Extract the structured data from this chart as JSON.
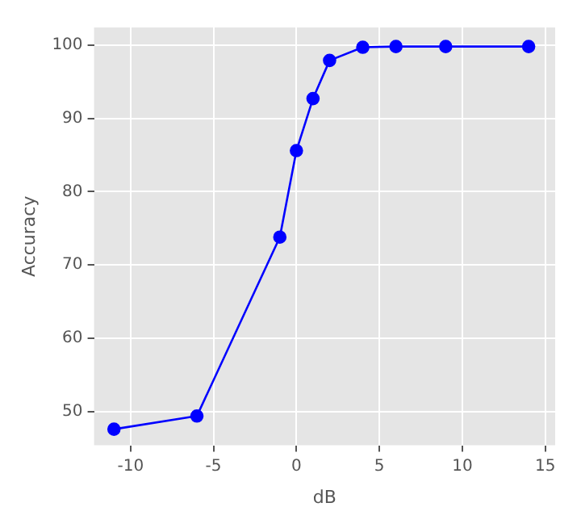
{
  "chart_data": {
    "type": "line",
    "xlabel": "dB",
    "ylabel": "Accuracy",
    "x": [
      -11,
      -6,
      -1,
      0,
      1,
      2,
      4,
      6,
      9,
      14
    ],
    "series": [
      {
        "color": "#0000ff",
        "values": [
          47.6,
          49.4,
          73.8,
          85.6,
          92.7,
          97.9,
          99.7,
          99.8,
          99.8,
          99.8
        ]
      }
    ],
    "xlim": [
      -12.2,
      15.6
    ],
    "xticks": [
      -10,
      -5,
      0,
      5,
      10,
      15
    ],
    "ylim": [
      45.4,
      102.4
    ],
    "yticks": [
      50,
      60,
      70,
      80,
      90,
      100
    ],
    "grid": true,
    "marker": "circle",
    "line_style": "solid",
    "legend": false
  }
}
